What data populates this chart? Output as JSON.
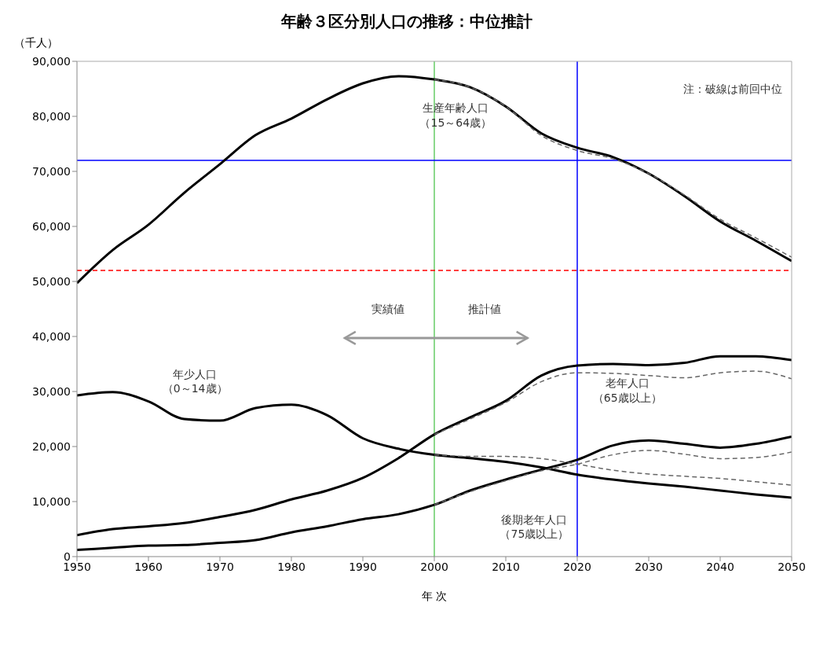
{
  "chart_data": {
    "type": "line",
    "title": "年齢３区分別人口の推移：中位推計",
    "ylabel": "（千人）",
    "xlabel": "年 次",
    "x": [
      1950,
      1955,
      1960,
      1965,
      1970,
      1975,
      1980,
      1985,
      1990,
      1995,
      2000,
      2005,
      2010,
      2015,
      2020,
      2025,
      2030,
      2035,
      2040,
      2045,
      2050
    ],
    "series": [
      {
        "name": "生産年齢人口（15～64歳）",
        "color": "#000000",
        "values": [
          49700,
          55700,
          60300,
          66100,
          71300,
          76600,
          79600,
          83100,
          86000,
          87300,
          86700,
          85300,
          81800,
          76900,
          74300,
          72600,
          69600,
          65500,
          60900,
          57400,
          53700
        ]
      },
      {
        "name": "年少人口（0～14歳）",
        "color": "#000000",
        "values": [
          29300,
          29900,
          28200,
          25000,
          24700,
          27000,
          27600,
          25700,
          21500,
          19600,
          18500,
          17900,
          17200,
          16200,
          14900,
          14000,
          13300,
          12700,
          12000,
          11300,
          10700
        ]
      },
      {
        "name": "老年人口（65歳以上）",
        "color": "#000000",
        "values": [
          3900,
          5000,
          5500,
          6100,
          7200,
          8500,
          10400,
          12000,
          14300,
          17900,
          22200,
          25300,
          28300,
          32900,
          34700,
          35000,
          34800,
          35200,
          36400,
          36400,
          35700
        ]
      },
      {
        "name": "後期老年人口（75歳以上）",
        "color": "#000000",
        "values": [
          1200,
          1600,
          2000,
          2100,
          2500,
          3000,
          4400,
          5500,
          6800,
          7700,
          9400,
          12000,
          14000,
          15800,
          17600,
          20200,
          21100,
          20500,
          19800,
          20500,
          21800
        ]
      },
      {
        "color": "#666666",
        "line_style": "dashed",
        "x": [
          2000,
          2005,
          2010,
          2015,
          2020,
          2025,
          2030,
          2035,
          2040,
          2045,
          2050
        ],
        "values": [
          86700,
          85300,
          81800,
          76500,
          73800,
          72300,
          69600,
          65700,
          61300,
          57900,
          54400
        ]
      },
      {
        "color": "#666666",
        "line_style": "dashed",
        "x": [
          2000,
          2005,
          2010,
          2015,
          2020,
          2025,
          2030,
          2035,
          2040,
          2045,
          2050
        ],
        "values": [
          18500,
          18200,
          18200,
          17800,
          16800,
          15700,
          15000,
          14600,
          14200,
          13600,
          13000
        ]
      },
      {
        "color": "#666666",
        "line_style": "dashed",
        "x": [
          2000,
          2005,
          2010,
          2015,
          2020,
          2025,
          2030,
          2035,
          2040,
          2045,
          2050
        ],
        "values": [
          22200,
          25000,
          28000,
          31800,
          33400,
          33300,
          32900,
          32500,
          33400,
          33700,
          32300
        ]
      },
      {
        "color": "#666666",
        "line_style": "dashed",
        "x": [
          2000,
          2005,
          2010,
          2015,
          2020,
          2025,
          2030,
          2035,
          2040,
          2045,
          2050
        ],
        "values": [
          9400,
          11800,
          13800,
          15600,
          16800,
          18500,
          19300,
          18600,
          17800,
          18000,
          19000
        ]
      }
    ],
    "xlim": [
      1950,
      2050
    ],
    "xticks": [
      1950,
      1960,
      1970,
      1980,
      1990,
      2000,
      2010,
      2020,
      2030,
      2040,
      2050
    ],
    "ylim": [
      0,
      90000
    ],
    "yticks": [
      {
        "value": 0,
        "label": "0"
      },
      {
        "value": 10000,
        "label": "10,000"
      },
      {
        "value": 20000,
        "label": "20,000"
      },
      {
        "value": 30000,
        "label": "30,000"
      },
      {
        "value": 40000,
        "label": "40,000"
      },
      {
        "value": 50000,
        "label": "50,000"
      },
      {
        "value": 60000,
        "label": "60,000"
      },
      {
        "value": 70000,
        "label": "70,000"
      },
      {
        "value": 80000,
        "label": "80,000"
      },
      {
        "value": 90000,
        "label": "90,000"
      }
    ],
    "marker": "none",
    "line_style": "solid",
    "ref_lines": [
      {
        "axis": "x",
        "value": 2000,
        "color": "#66cc66",
        "line_style": "solid"
      },
      {
        "axis": "y",
        "value": 72000,
        "color": "#0000ff",
        "line_style": "solid"
      },
      {
        "axis": "x",
        "value": 2020,
        "color": "#0000ff",
        "line_style": "solid"
      },
      {
        "axis": "y",
        "value": 52000,
        "color": "#ff0000",
        "line_style": "dashed"
      }
    ],
    "annotations": [
      "注：破線は前回中位",
      "実績値",
      "推計値"
    ]
  }
}
